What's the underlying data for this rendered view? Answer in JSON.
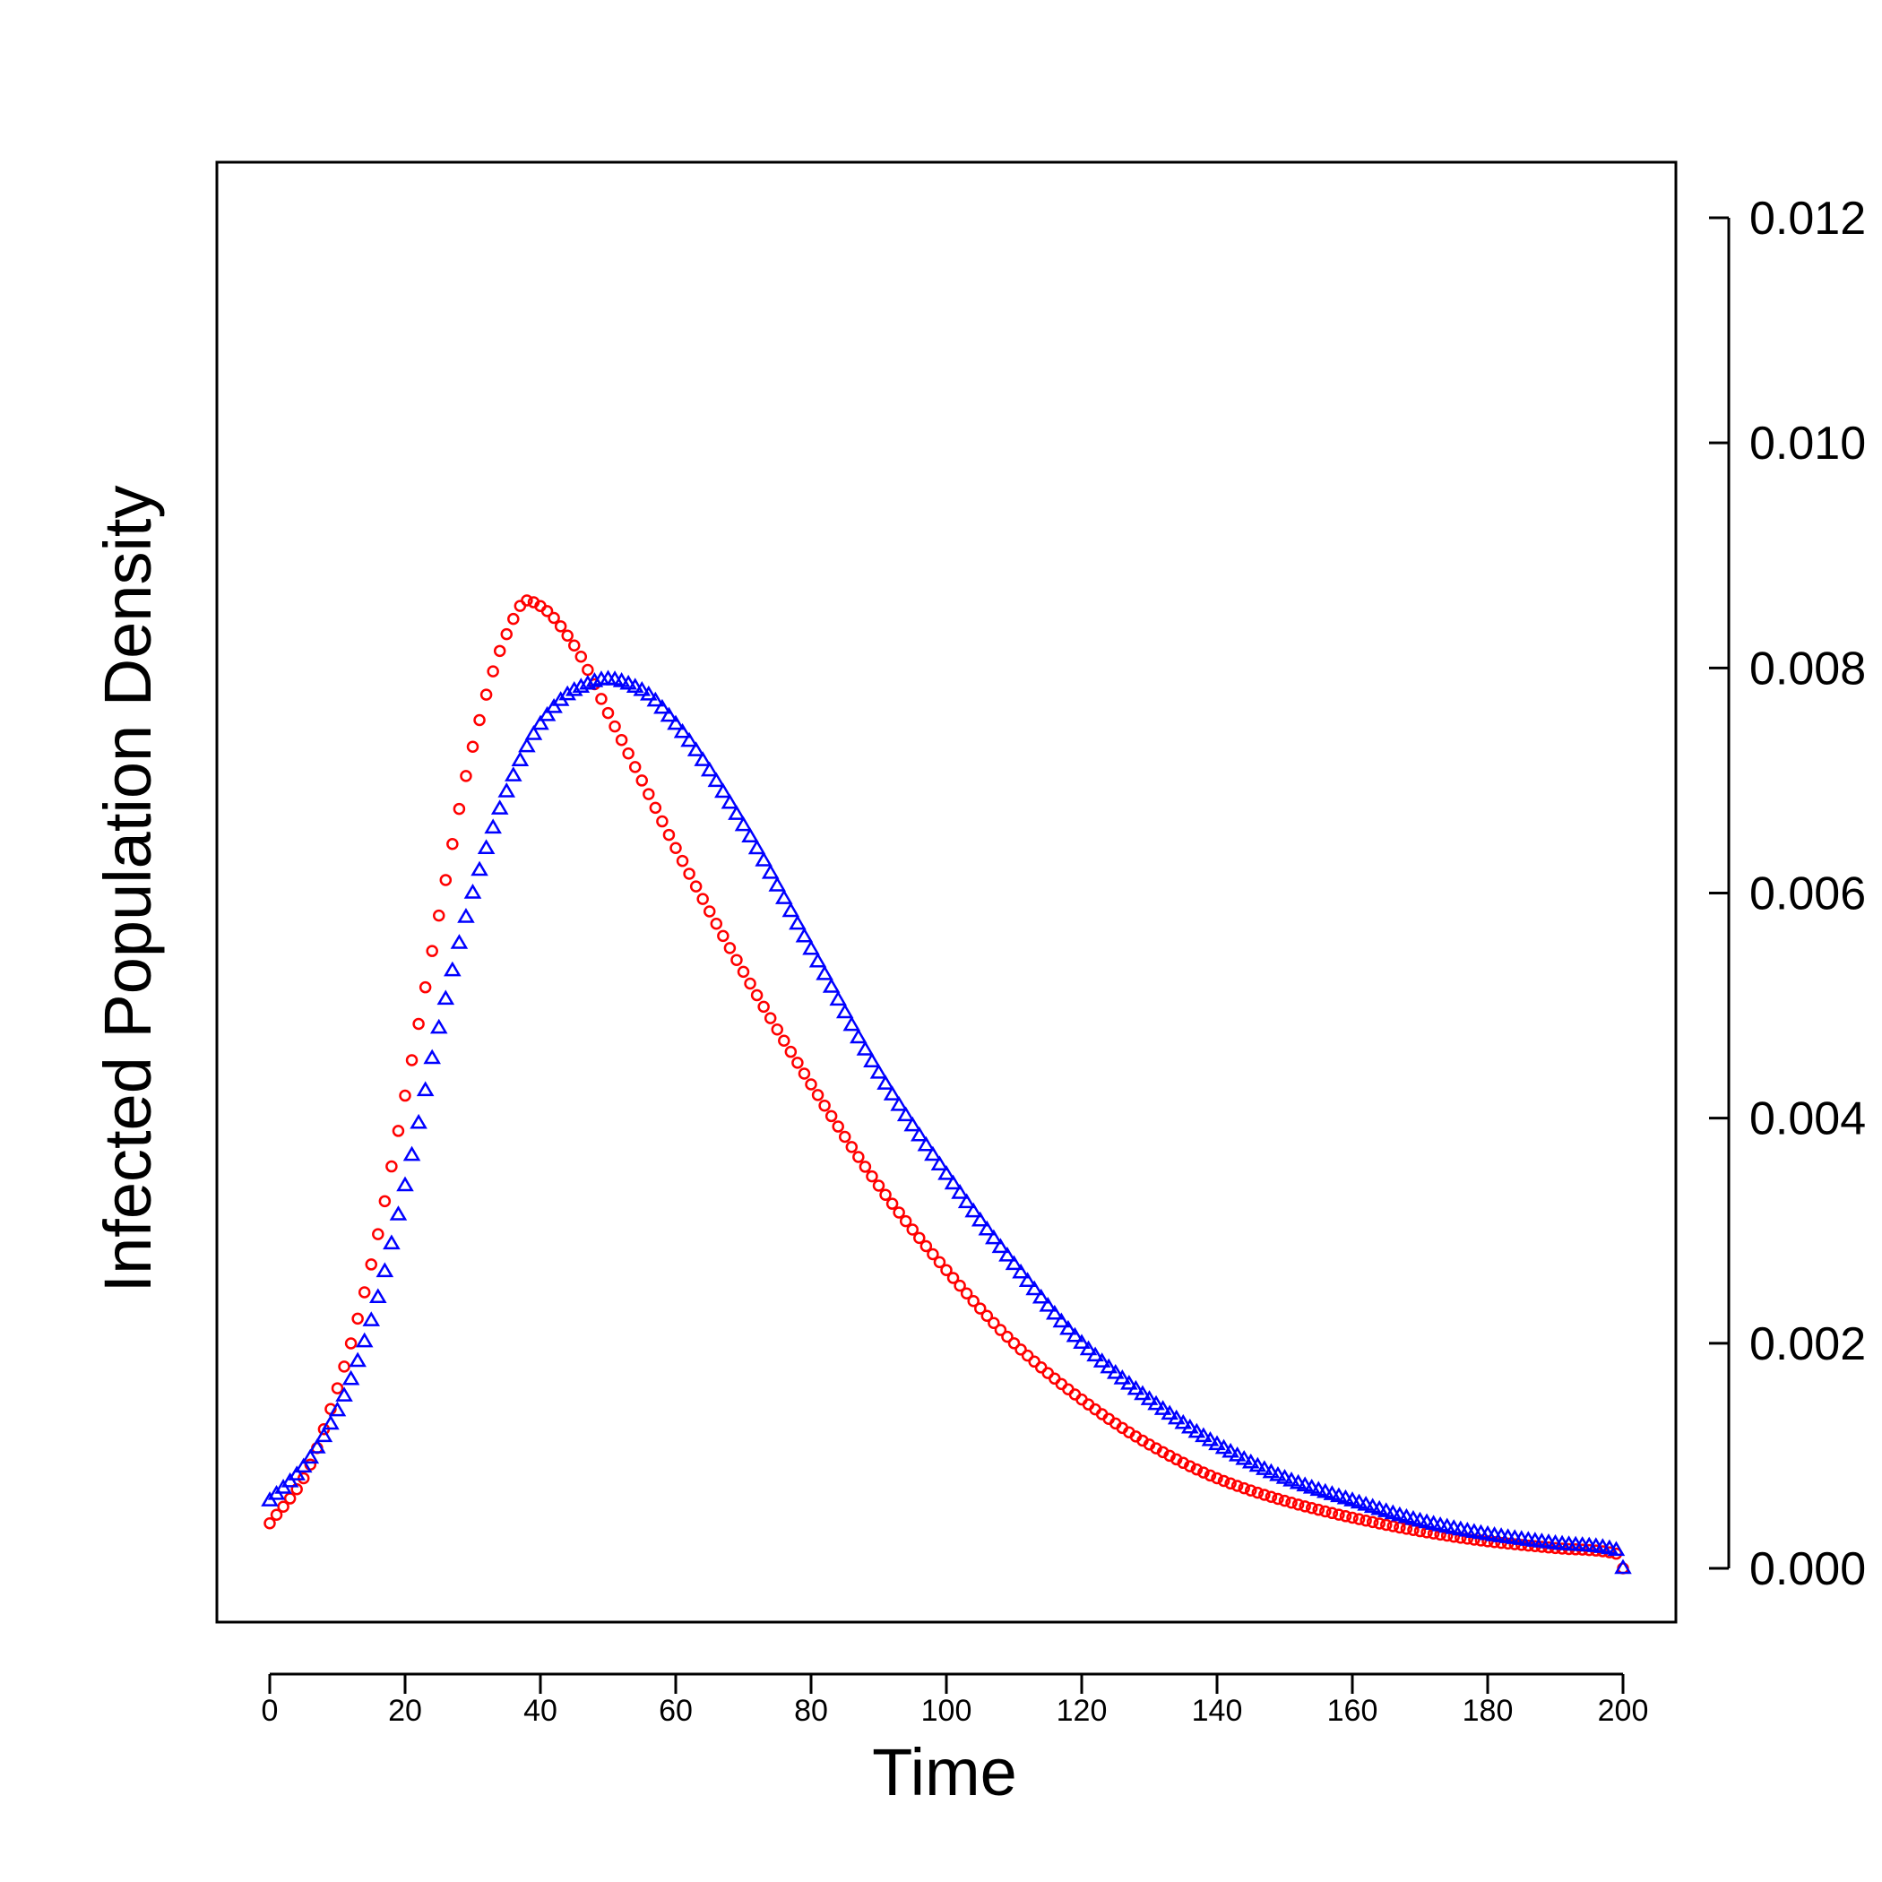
{
  "chart_data": {
    "type": "scatter",
    "title": "",
    "xlabel": "Time",
    "ylabel": "Infected Population Density",
    "xlim": [
      0,
      200
    ],
    "ylim": [
      0,
      0.012
    ],
    "x_ticks": [
      0,
      20,
      40,
      60,
      80,
      100,
      120,
      140,
      160,
      180,
      200
    ],
    "x_tick_labels": [
      "0",
      "20",
      "40",
      "60",
      "80",
      "100",
      "120",
      "140",
      "160",
      "180",
      "200"
    ],
    "y_ticks": [
      0,
      0.002,
      0.004,
      0.006,
      0.008,
      0.01,
      0.012
    ],
    "y_tick_labels": [
      "0.000",
      "0.002",
      "0.004",
      "0.006",
      "0.008",
      "0.010",
      "0.012"
    ],
    "y_axis_side": "right",
    "grid": false,
    "legend": null,
    "series": [
      {
        "name": "red circles",
        "color": "#ff0000",
        "marker": "circle",
        "key_points": [
          [
            0,
            0.0004
          ],
          [
            5,
            0.0008
          ],
          [
            10,
            0.0016
          ],
          [
            15,
            0.0027
          ],
          [
            20,
            0.0042
          ],
          [
            25,
            0.0058
          ],
          [
            30,
            0.0073
          ],
          [
            35,
            0.0083
          ],
          [
            38,
            0.0086
          ],
          [
            40,
            0.00855
          ],
          [
            45,
            0.0082
          ],
          [
            50,
            0.0076
          ],
          [
            55,
            0.007
          ],
          [
            60,
            0.0064
          ],
          [
            70,
            0.0053
          ],
          [
            80,
            0.0043
          ],
          [
            90,
            0.0034
          ],
          [
            100,
            0.00265
          ],
          [
            110,
            0.002
          ],
          [
            120,
            0.0015
          ],
          [
            130,
            0.0011
          ],
          [
            140,
            0.0008
          ],
          [
            150,
            0.0006
          ],
          [
            160,
            0.00045
          ],
          [
            170,
            0.00033
          ],
          [
            180,
            0.00024
          ],
          [
            190,
            0.00018
          ],
          [
            199,
            0.00013
          ],
          [
            200,
            0.0
          ]
        ]
      },
      {
        "name": "blue triangles",
        "color": "#0000ff",
        "marker": "triangle",
        "key_points": [
          [
            0,
            0.0006
          ],
          [
            5,
            0.0009
          ],
          [
            10,
            0.0014
          ],
          [
            15,
            0.0022
          ],
          [
            20,
            0.0034
          ],
          [
            25,
            0.0048
          ],
          [
            30,
            0.006
          ],
          [
            35,
            0.0069
          ],
          [
            40,
            0.0075
          ],
          [
            45,
            0.0078
          ],
          [
            50,
            0.0079
          ],
          [
            55,
            0.0078
          ],
          [
            60,
            0.0075
          ],
          [
            70,
            0.0066
          ],
          [
            80,
            0.0055
          ],
          [
            90,
            0.0044
          ],
          [
            100,
            0.0035
          ],
          [
            110,
            0.0027
          ],
          [
            120,
            0.002
          ],
          [
            130,
            0.0015
          ],
          [
            140,
            0.0011
          ],
          [
            150,
            0.0008
          ],
          [
            160,
            0.0006
          ],
          [
            170,
            0.00042
          ],
          [
            180,
            0.0003
          ],
          [
            190,
            0.00022
          ],
          [
            199,
            0.00016
          ],
          [
            200,
            0.0
          ]
        ]
      }
    ]
  }
}
